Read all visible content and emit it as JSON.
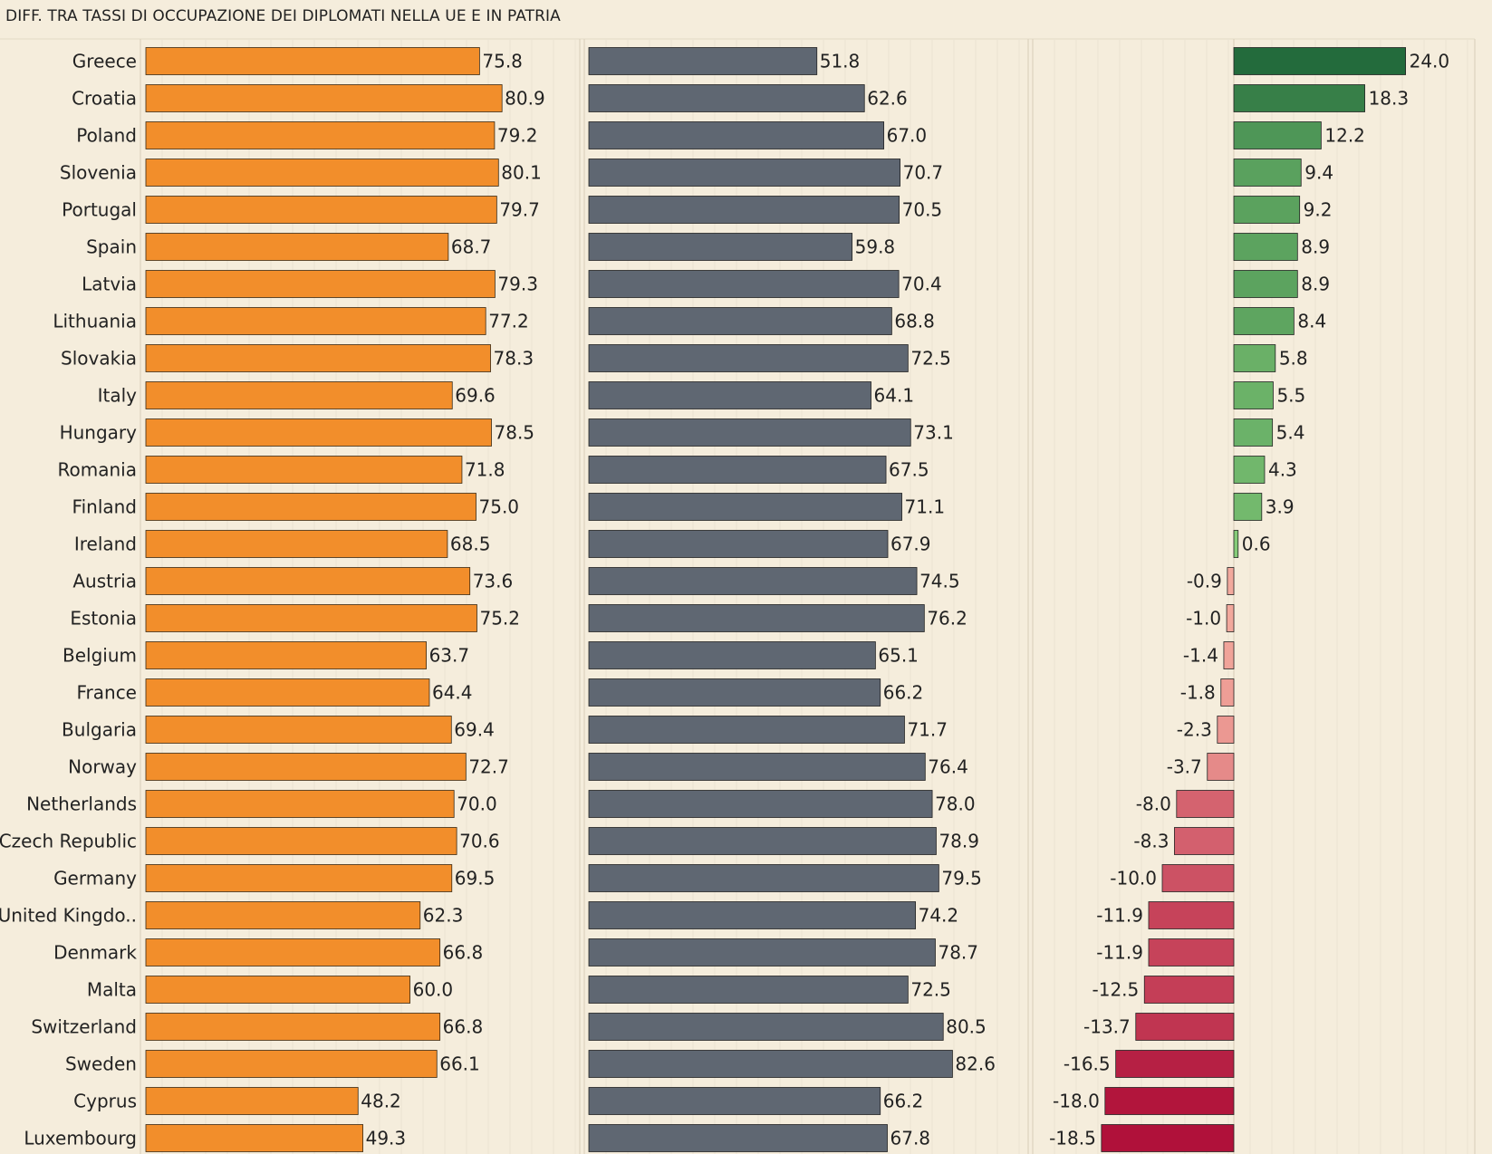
{
  "title": "DIFF. TRA TASSI DI OCCUPAZIONE DEI DIPLOMATI NELLA UE E IN PATRIA",
  "colors": {
    "background": "#f5eddc",
    "panel1_bar": "#f28e2b",
    "panel2_bar": "#5f6772",
    "pos_light": "#8bd17c",
    "pos_dark": "#236b3c",
    "neg_light": "#f9b8a7",
    "neg_dark": "#b0113a"
  },
  "chart_data": {
    "type": "bar",
    "orientation": "horizontal",
    "title": "DIFF. TRA TASSI DI OCCUPAZIONE DEI DIPLOMATI NELLA UE E IN PATRIA",
    "categories": [
      "Greece",
      "Croatia",
      "Poland",
      "Slovenia",
      "Portugal",
      "Spain",
      "Latvia",
      "Lithuania",
      "Slovakia",
      "Italy",
      "Hungary",
      "Romania",
      "Finland",
      "Ireland",
      "Austria",
      "Estonia",
      "Belgium",
      "France",
      "Bulgaria",
      "Norway",
      "Netherlands",
      "Czech Republic",
      "Germany",
      "United Kingdo..",
      "Denmark",
      "Malta",
      "Switzerland",
      "Sweden",
      "Cyprus",
      "Luxembourg"
    ],
    "series": [
      {
        "values": [
          75.8,
          80.9,
          79.2,
          80.1,
          79.7,
          68.7,
          79.3,
          77.2,
          78.3,
          69.6,
          78.5,
          71.8,
          75.0,
          68.5,
          73.6,
          75.2,
          63.7,
          64.4,
          69.4,
          72.7,
          70.0,
          70.6,
          69.5,
          62.3,
          66.8,
          60.0,
          66.8,
          66.1,
          48.2,
          49.3
        ],
        "labels": [
          "75.8",
          "80.9",
          "79.2",
          "80.1",
          "79.7",
          "68.7",
          "79.3",
          "77.2",
          "78.3",
          "69.6",
          "78.5",
          "71.8",
          "75.0",
          "68.5",
          "73.6",
          "75.2",
          "63.7",
          "64.4",
          "69.4",
          "72.7",
          "70.0",
          "70.6",
          "69.5",
          "62.3",
          "66.8",
          "60.0",
          "66.8",
          "66.1",
          "48.2",
          "49.3"
        ]
      },
      {
        "values": [
          51.8,
          62.6,
          67.0,
          70.7,
          70.5,
          59.8,
          70.4,
          68.8,
          72.5,
          64.1,
          73.1,
          67.5,
          71.1,
          67.9,
          74.5,
          76.2,
          65.1,
          66.2,
          71.7,
          76.4,
          78.0,
          78.9,
          79.5,
          74.2,
          78.7,
          72.5,
          80.5,
          82.6,
          66.2,
          67.8
        ],
        "labels": [
          "51.8",
          "62.6",
          "67.0",
          "70.7",
          "70.5",
          "59.8",
          "70.4",
          "68.8",
          "72.5",
          "64.1",
          "73.1",
          "67.5",
          "71.1",
          "67.9",
          "74.5",
          "76.2",
          "65.1",
          "66.2",
          "71.7",
          "76.4",
          "78.0",
          "78.9",
          "79.5",
          "74.2",
          "78.7",
          "72.5",
          "80.5",
          "82.6",
          "66.2",
          "67.8"
        ]
      },
      {
        "values": [
          24.0,
          18.3,
          12.2,
          9.4,
          9.2,
          8.9,
          8.9,
          8.4,
          5.8,
          5.5,
          5.4,
          4.3,
          3.9,
          0.6,
          -0.9,
          -1.0,
          -1.4,
          -1.8,
          -2.3,
          -3.7,
          -8.0,
          -8.3,
          -10.0,
          -11.9,
          -11.9,
          -12.5,
          -13.7,
          -16.5,
          -18.0,
          -18.5
        ],
        "labels": [
          "24.0",
          "18.3",
          "12.2",
          "9.4",
          "9.2",
          "8.9",
          "8.9",
          "8.4",
          "5.8",
          "5.5",
          "5.4",
          "4.3",
          "3.9",
          "0.6",
          "-0.9",
          "-1.0",
          "-1.4",
          "-1.8",
          "-2.3",
          "-3.7",
          "-8.0",
          "-8.3",
          "-10.0",
          "-11.9",
          "-11.9",
          "-12.5",
          "-13.7",
          "-16.5",
          "-18.0",
          "-18.5"
        ]
      }
    ],
    "panel_ranges": [
      [
        0,
        100
      ],
      [
        0,
        100
      ],
      [
        -40,
        33
      ]
    ],
    "gridlines": "vertical"
  }
}
